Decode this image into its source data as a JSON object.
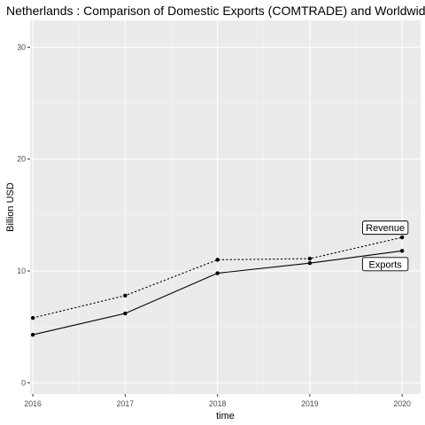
{
  "chart_data": {
    "type": "line",
    "title": "Netherlands : Comparison of Domestic Exports (COMTRADE) and Worldwide",
    "xlabel": "time",
    "ylabel": "Billion USD",
    "x": [
      2016,
      2017,
      2018,
      2019,
      2020
    ],
    "x_tick_labels": [
      "2016",
      "2017",
      "2018",
      "2019",
      "2020"
    ],
    "y_ticks": [
      0,
      10,
      20,
      30
    ],
    "y_tick_labels": [
      "0",
      "10",
      "20",
      "30"
    ],
    "xlim": [
      2015.97,
      2020.2
    ],
    "ylim": [
      -1.0,
      32.4
    ],
    "grid": true,
    "series": [
      {
        "name": "Revenue",
        "values": [
          5.8,
          7.8,
          11.0,
          11.1,
          13.0
        ],
        "line_style": "dashed",
        "color": "#000000"
      },
      {
        "name": "Exports",
        "values": [
          4.3,
          6.2,
          9.8,
          10.7,
          11.8
        ],
        "line_style": "solid",
        "color": "#000000"
      }
    ]
  },
  "colors": {
    "panel_background": "#ebebeb",
    "grid_major": "#ffffff",
    "grid_minor": "#f5f5f5",
    "line": "#000000"
  }
}
